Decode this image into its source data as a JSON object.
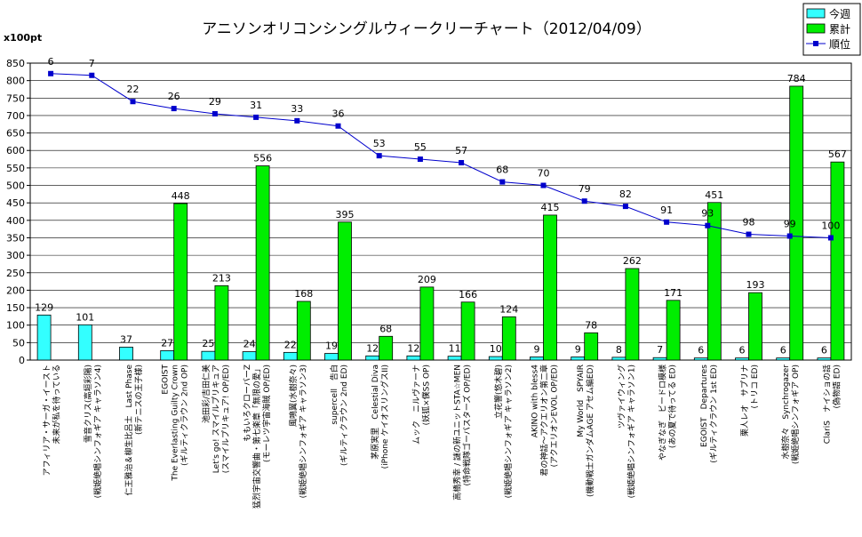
{
  "chart_data": {
    "type": "bar",
    "title": "アニソンオリコンシングルウィークリーチャート（2012/04/09）",
    "unit_label": "x100pt",
    "ylim": [
      0,
      850
    ],
    "yticks": [
      0,
      50,
      100,
      150,
      200,
      250,
      300,
      350,
      400,
      450,
      500,
      550,
      600,
      650,
      700,
      750,
      800,
      850
    ],
    "rank_scale_top": 0,
    "rank_scale_bottom": 170,
    "grid": true,
    "legend_position": "top-right",
    "categories": [
      [
        "アフィリア・サーガ・イースト",
        "未来が私を待っている"
      ],
      [
        "雪音クリス(高垣彩陽)",
        "(戦姫絶唱シンフォギア キャラソン4)"
      ],
      [
        "仁王雅治＆柳生比呂士　Last Phase",
        "(新テニスの王子様)"
      ],
      [
        "EGOIST",
        "The Everlasting Guilty Crown",
        "(ギルティクラウン 2nd OP)"
      ],
      [
        "池田彩/吉田仁美",
        "Let's go! スマイルプリキュア",
        "(スマイルプリキュア! OP/ED)"
      ],
      [
        "ももいろクローバーZ",
        "猛烈宇宙交響曲・第七楽章「無限の愛」",
        "(モーレツ宇宙海賊 OP/ED)"
      ],
      [
        "風鳴翼(水樹奈々)",
        "(戦姫絶唱シンフォギア キャラソン3)"
      ],
      [
        "supercell　告白",
        "(ギルティクラウン 2nd ED)"
      ],
      [
        "茅原実里　Celestial Diva",
        "(iPhone ケイオスリングスII)"
      ],
      [
        "ムック　ニルヴァーナ",
        "(妖狐×僕SS OP)"
      ],
      [
        "高橋秀幸 / 謎の新ユニットSTA☆MEN",
        "(特命戦隊ゴーバスターズ OP/ED)"
      ],
      [
        "立花響(悠木碧)",
        "(戦姫絶唱シンフォギア キャラソン2)"
      ],
      [
        "AKINO with bless4",
        "君の神話～アクエリオン第二章",
        "(アクエリオンEVOL OP/ED)"
      ],
      [
        "My World　SPYAIR",
        "(機動戦士ガンダムAGE アセム編ED)"
      ],
      [
        "ツヴァイウィング",
        "(戦姫絶唱シンフォギア キャラソン1)"
      ],
      [
        "やなぎなぎ　ビードロ模様",
        "(あの夏で待ってる ED)"
      ],
      [
        "EGOIST　Departures",
        "(ギルティクラウン 1st ED)"
      ],
      [
        "栗人レオ　サプリナ",
        "(トリコ ED)"
      ],
      [
        "水樹奈々　Synchrogazer",
        "(戦姫絶唱シンフォギア OP)"
      ],
      [
        "ClariS　ナイショの話",
        "(偽物語 ED)"
      ]
    ],
    "series": [
      {
        "name": "今週",
        "color": "#33ffff",
        "type": "bar",
        "values": [
          129,
          101,
          37,
          27,
          25,
          24,
          22,
          19,
          12,
          12,
          11,
          10,
          9,
          9,
          8,
          7,
          6,
          6,
          6,
          6
        ]
      },
      {
        "name": "累計",
        "color": "#00ee00",
        "type": "bar",
        "values": [
          null,
          null,
          null,
          448,
          213,
          556,
          168,
          395,
          68,
          209,
          166,
          124,
          415,
          78,
          262,
          171,
          451,
          193,
          784,
          567
        ]
      },
      {
        "name": "順位",
        "color": "#0000cc",
        "type": "line",
        "values": [
          6,
          7,
          22,
          26,
          29,
          31,
          33,
          36,
          53,
          55,
          57,
          68,
          70,
          79,
          82,
          91,
          93,
          98,
          99,
          100
        ]
      }
    ]
  }
}
